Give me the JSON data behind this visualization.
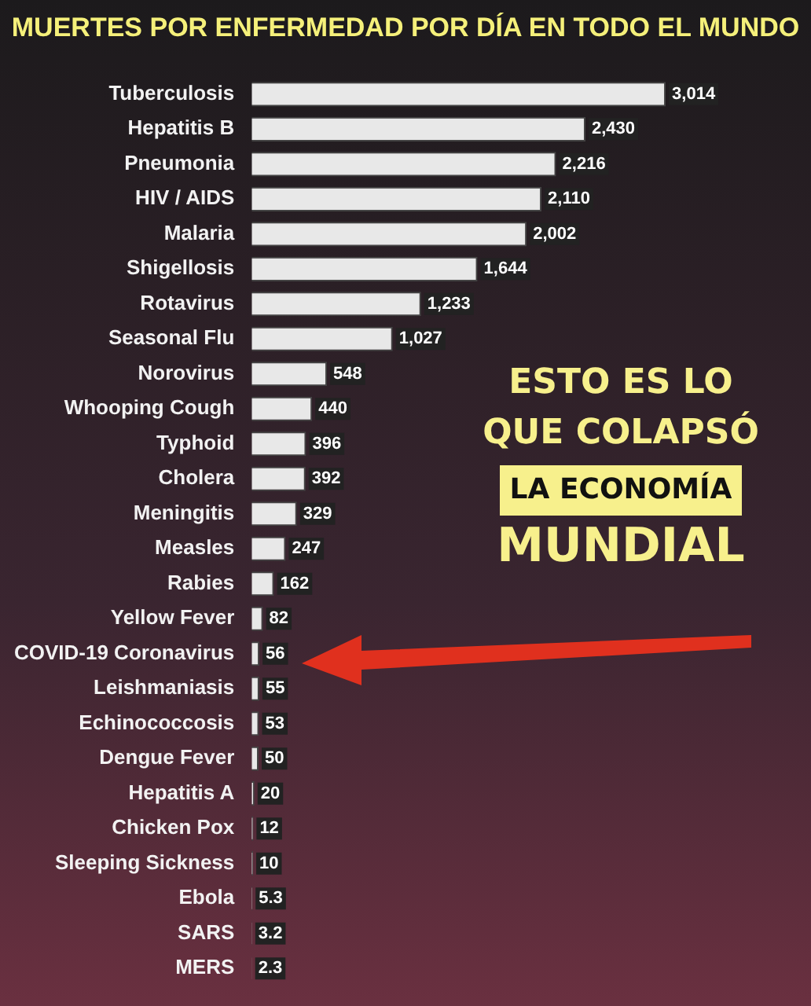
{
  "chart_data": {
    "type": "bar",
    "orientation": "horizontal",
    "title": "MUERTES POR ENFERMEDAD POR DÍA EN TODO EL MUNDO",
    "categories": [
      "Tuberculosis",
      "Hepatitis B",
      "Pneumonia",
      "HIV / AIDS",
      "Malaria",
      "Shigellosis",
      "Rotavirus",
      "Seasonal Flu",
      "Norovirus",
      "Whooping Cough",
      "Typhoid",
      "Cholera",
      "Meningitis",
      "Measles",
      "Rabies",
      "Yellow Fever",
      "COVID-19 Coronavirus",
      "Leishmaniasis",
      "Echinococcosis",
      "Dengue Fever",
      "Hepatitis A",
      "Chicken Pox",
      "Sleeping Sickness",
      "Ebola",
      "SARS",
      "MERS"
    ],
    "values": [
      3014,
      2430,
      2216,
      2110,
      2002,
      1644,
      1233,
      1027,
      548,
      440,
      396,
      392,
      329,
      247,
      162,
      82,
      56,
      55,
      53,
      50,
      20,
      12,
      10,
      5.3,
      3.2,
      2.3
    ],
    "color": "#e8e8e8",
    "value_labels": [
      "3,014",
      "2,430",
      "2,216",
      "2,110",
      "2,002",
      "1,644",
      "1,233",
      "1,027",
      "548",
      "440",
      "396",
      "392",
      "329",
      "247",
      "162",
      "82",
      "56",
      "55",
      "53",
      "50",
      "20",
      "12",
      "10",
      "5.3",
      "3.2",
      "2.3"
    ],
    "annotations": [
      "ESTO ES LO",
      "QUE COLAPSÓ",
      "LA ECONOMÍA",
      "MUNDIAL"
    ]
  }
}
